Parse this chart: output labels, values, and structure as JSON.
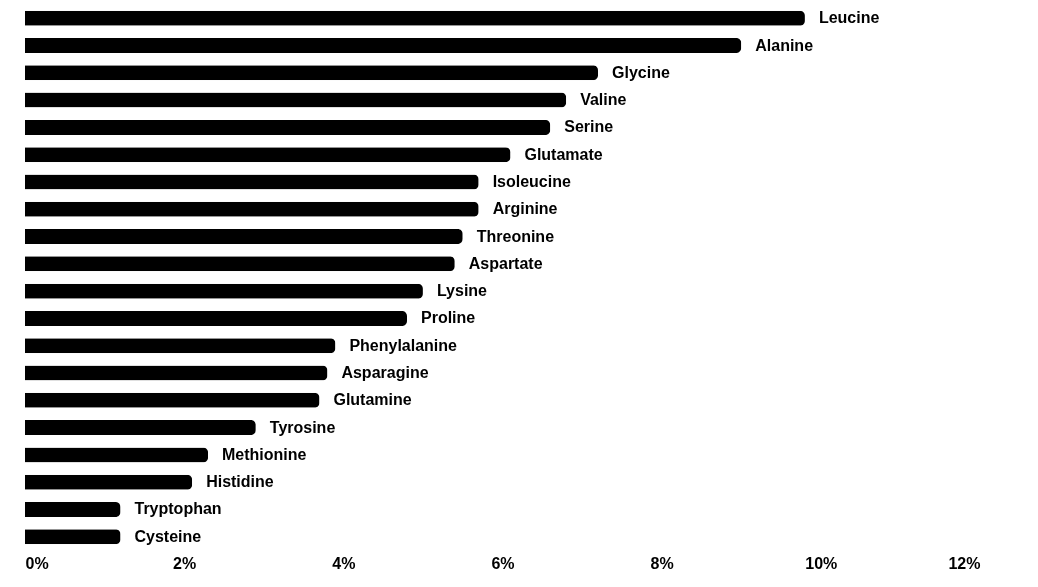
{
  "chart_data": {
    "type": "bar",
    "orientation": "horizontal",
    "categories": [
      "Leucine",
      "Alanine",
      "Glycine",
      "Valine",
      "Serine",
      "Glutamate",
      "Isoleucine",
      "Arginine",
      "Threonine",
      "Aspartate",
      "Lysine",
      "Proline",
      "Phenylalanine",
      "Asparagine",
      "Glutamine",
      "Tyrosine",
      "Methionine",
      "Histidine",
      "Tryptophan",
      "Cysteine"
    ],
    "values": [
      9.8,
      9.0,
      7.2,
      6.8,
      6.6,
      6.1,
      5.7,
      5.7,
      5.5,
      5.4,
      5.0,
      4.8,
      3.9,
      3.8,
      3.7,
      2.9,
      2.3,
      2.1,
      1.2,
      1.2
    ],
    "color": "#000000",
    "xlim": [
      0,
      12
    ],
    "xticks": [
      {
        "value": 0,
        "label": "0%"
      },
      {
        "value": 2,
        "label": "2%"
      },
      {
        "value": 4,
        "label": "4%"
      },
      {
        "value": 6,
        "label": "6%"
      },
      {
        "value": 8,
        "label": "8%"
      },
      {
        "value": 10,
        "label": "10%"
      },
      {
        "value": 12,
        "label": "12%"
      }
    ],
    "grid": false
  }
}
